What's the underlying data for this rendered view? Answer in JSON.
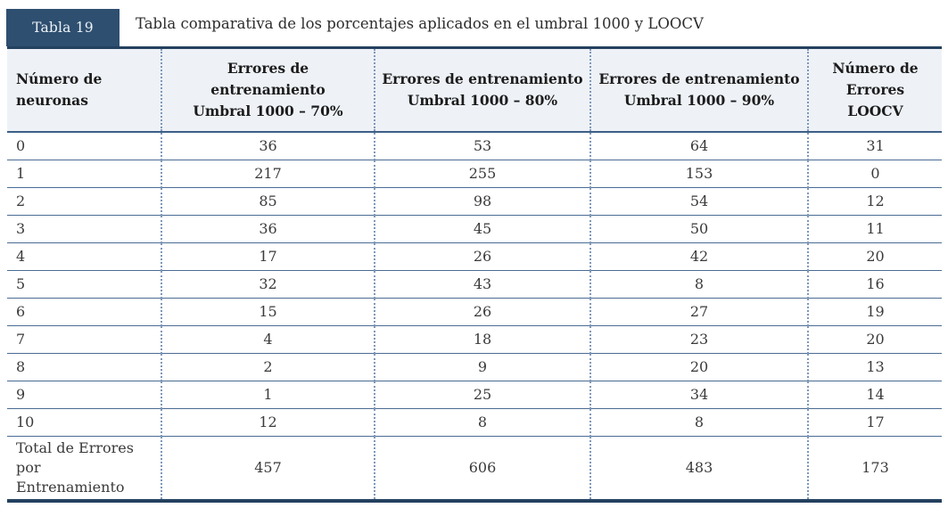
{
  "badge": {
    "label": "Tabla 19"
  },
  "caption": "Tabla comparativa de los porcentajes aplicados en el umbral 1000 y LOOCV",
  "table": {
    "headers": [
      {
        "line1": "Número de",
        "line2": "neuronas",
        "line3": ""
      },
      {
        "line1": "Errores de entrenamiento",
        "line2": "Umbral 1000 – 70%",
        "line3": ""
      },
      {
        "line1": "Errores de entrenamiento",
        "line2": "Umbral 1000 – 80%",
        "line3": ""
      },
      {
        "line1": "Errores de entrenamiento",
        "line2": "Umbral 1000 – 90%",
        "line3": ""
      },
      {
        "line1": "Número de",
        "line2": "Errores",
        "line3": "LOOCV"
      }
    ],
    "rows": [
      {
        "label": "0",
        "values": [
          "36",
          "53",
          "64",
          "31"
        ]
      },
      {
        "label": "1",
        "values": [
          "217",
          "255",
          "153",
          "0"
        ]
      },
      {
        "label": "2",
        "values": [
          "85",
          "98",
          "54",
          "12"
        ]
      },
      {
        "label": "3",
        "values": [
          "36",
          "45",
          "50",
          "11"
        ]
      },
      {
        "label": "4",
        "values": [
          "17",
          "26",
          "42",
          "20"
        ]
      },
      {
        "label": "5",
        "values": [
          "32",
          "43",
          "8",
          "16"
        ]
      },
      {
        "label": "6",
        "values": [
          "15",
          "26",
          "27",
          "19"
        ]
      },
      {
        "label": "7",
        "values": [
          "4",
          "18",
          "23",
          "20"
        ]
      },
      {
        "label": "8",
        "values": [
          "2",
          "9",
          "20",
          "13"
        ]
      },
      {
        "label": "9",
        "values": [
          "1",
          "25",
          "34",
          "14"
        ]
      },
      {
        "label": "10",
        "values": [
          "12",
          "8",
          "8",
          "17"
        ]
      }
    ],
    "total": {
      "label": "Total de Errores por Entrenamiento",
      "values": [
        "457",
        "606",
        "483",
        "173"
      ]
    }
  },
  "colors": {
    "badge_bg": "#2e4f70",
    "border_dark": "#24415f",
    "row_line": "#4a6c94",
    "dotted_line": "#7e98b8",
    "header_bg": "#eef2f7"
  }
}
